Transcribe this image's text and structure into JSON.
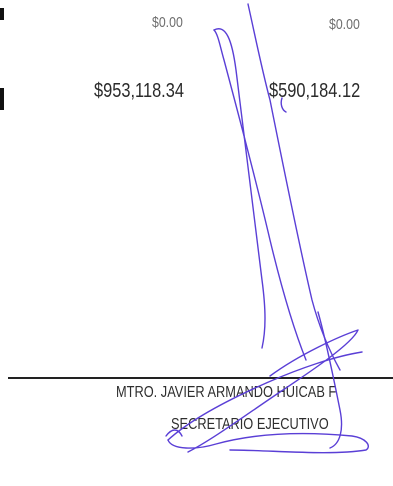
{
  "amounts": {
    "col1_zero": "$0.00",
    "col2_zero": "$0.00",
    "col1_total": "$953,118.34",
    "col2_total": "$590,184.12"
  },
  "signatory": {
    "name": "MTRO. JAVIER ARMANDO HUICAB F",
    "title": "SECRETARIO EJECUTIVO"
  },
  "colors": {
    "ink": "#5a3fd6",
    "text": "#2a2a2a"
  }
}
